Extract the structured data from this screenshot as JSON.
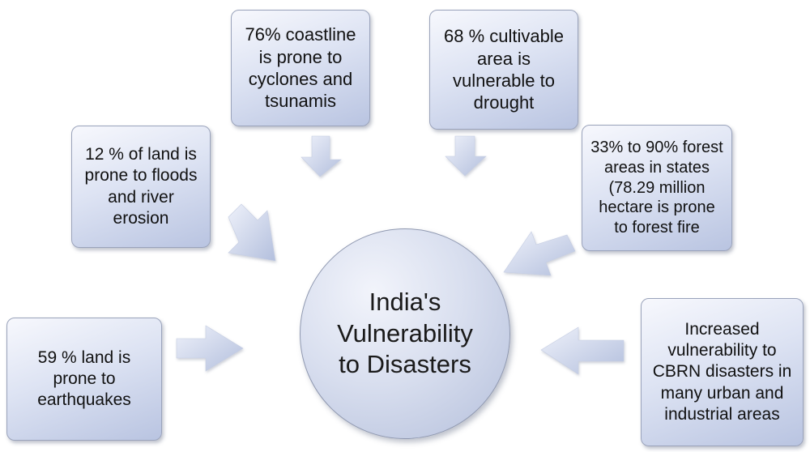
{
  "colors": {
    "box_light": "#f7f8fd",
    "box_dark": "#b9c4e1",
    "border": "#9aa3bb",
    "arrow_light": "#eef1fa",
    "arrow_dark": "#b3bfdd"
  },
  "center": {
    "label": "India's\nVulnerability\nto Disasters"
  },
  "facts": {
    "coastline": "76% coastline\nis prone to\ncyclones and\ntsunamis",
    "drought": "68 % cultivable\narea is\nvulnerable to\ndrought",
    "floods": "12 % of land is\nprone to floods\nand river\nerosion",
    "forest": "33% to 90% forest\nareas in states\n(78.29 million\nhectare  is prone\nto forest fire",
    "earthquake": "59 % land is\nprone to\nearthquakes",
    "cbrn": "Increased\nvulnerability to\nCBRN disasters in\nmany  urban and\nindustrial areas"
  },
  "arrows": [
    {
      "name": "arrow-coastline",
      "from": "coastline",
      "icon": "block-arrow"
    },
    {
      "name": "arrow-drought",
      "from": "drought",
      "icon": "block-arrow"
    },
    {
      "name": "arrow-floods",
      "from": "floods",
      "icon": "block-arrow"
    },
    {
      "name": "arrow-forest",
      "from": "forest",
      "icon": "block-arrow"
    },
    {
      "name": "arrow-earthquake",
      "from": "earthquake",
      "icon": "block-arrow"
    },
    {
      "name": "arrow-cbrn",
      "from": "cbrn",
      "icon": "block-arrow"
    }
  ]
}
